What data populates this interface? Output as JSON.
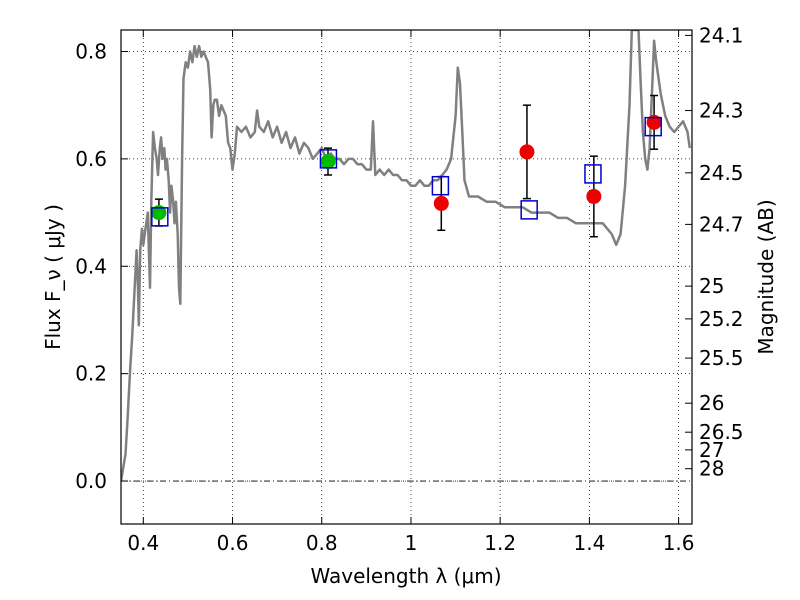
{
  "chart_data": {
    "type": "scatter",
    "xlabel": "Wavelength  λ (μm)",
    "ylabel": "Flux  F_ν  ( μJy )",
    "ylabel_right": "Magnitude (AB)",
    "xlim": [
      0.35,
      1.63
    ],
    "ylim": [
      -0.08,
      0.84
    ],
    "x_ticks": [
      0.4,
      0.6,
      0.8,
      1.0,
      1.2,
      1.4,
      1.6
    ],
    "x_tick_labels": [
      "0.4",
      "0.6",
      "0.8",
      "1",
      "1.2",
      "1.4",
      "1.6"
    ],
    "y_ticks": [
      0.0,
      0.2,
      0.4,
      0.6,
      0.8
    ],
    "y_tick_labels": [
      "0.0",
      "0.2",
      "0.4",
      "0.6",
      "0.8"
    ],
    "right_ticks": [
      {
        "label": "24.1",
        "flux": 0.83
      },
      {
        "label": "24.3",
        "flux": 0.69
      },
      {
        "label": "24.5",
        "flux": 0.574
      },
      {
        "label": "24.7",
        "flux": 0.478
      },
      {
        "label": "25",
        "flux": 0.363
      },
      {
        "label": "25.2",
        "flux": 0.302
      },
      {
        "label": "25.5",
        "flux": 0.229
      },
      {
        "label": "26",
        "flux": 0.145
      },
      {
        "label": "26.5",
        "flux": 0.091
      },
      {
        "label": "27",
        "flux": 0.058
      },
      {
        "label": "28",
        "flux": 0.023
      }
    ],
    "grid": true,
    "zero_line": true,
    "colors": {
      "sed_line": "#808080",
      "green_points": "#00bb00",
      "red_points": "#ee0000",
      "model_boxes": "#0000cc",
      "error_bars": "#000000"
    },
    "series": [
      {
        "type": "line",
        "points": [
          [
            0.35,
            0.0
          ],
          [
            0.36,
            0.05
          ],
          [
            0.365,
            0.12
          ],
          [
            0.37,
            0.2
          ],
          [
            0.375,
            0.27
          ],
          [
            0.38,
            0.35
          ],
          [
            0.385,
            0.43
          ],
          [
            0.388,
            0.36
          ],
          [
            0.39,
            0.29
          ],
          [
            0.393,
            0.43
          ],
          [
            0.397,
            0.47
          ],
          [
            0.4,
            0.44
          ],
          [
            0.405,
            0.47
          ],
          [
            0.41,
            0.5
          ],
          [
            0.412,
            0.44
          ],
          [
            0.415,
            0.36
          ],
          [
            0.418,
            0.52
          ],
          [
            0.422,
            0.65
          ],
          [
            0.426,
            0.62
          ],
          [
            0.43,
            0.6
          ],
          [
            0.433,
            0.57
          ],
          [
            0.437,
            0.62
          ],
          [
            0.44,
            0.64
          ],
          [
            0.443,
            0.6
          ],
          [
            0.447,
            0.62
          ],
          [
            0.45,
            0.58
          ],
          [
            0.453,
            0.6
          ],
          [
            0.457,
            0.56
          ],
          [
            0.46,
            0.5
          ],
          [
            0.463,
            0.55
          ],
          [
            0.467,
            0.52
          ],
          [
            0.47,
            0.48
          ],
          [
            0.473,
            0.52
          ],
          [
            0.477,
            0.46
          ],
          [
            0.48,
            0.36
          ],
          [
            0.483,
            0.33
          ],
          [
            0.487,
            0.6
          ],
          [
            0.49,
            0.75
          ],
          [
            0.495,
            0.78
          ],
          [
            0.5,
            0.77
          ],
          [
            0.505,
            0.8
          ],
          [
            0.51,
            0.78
          ],
          [
            0.515,
            0.81
          ],
          [
            0.52,
            0.79
          ],
          [
            0.525,
            0.81
          ],
          [
            0.53,
            0.79
          ],
          [
            0.535,
            0.8
          ],
          [
            0.545,
            0.78
          ],
          [
            0.55,
            0.73
          ],
          [
            0.553,
            0.64
          ],
          [
            0.557,
            0.7
          ],
          [
            0.56,
            0.71
          ],
          [
            0.565,
            0.71
          ],
          [
            0.57,
            0.68
          ],
          [
            0.575,
            0.7
          ],
          [
            0.585,
            0.68
          ],
          [
            0.59,
            0.63
          ],
          [
            0.595,
            0.62
          ],
          [
            0.6,
            0.58
          ],
          [
            0.605,
            0.61
          ],
          [
            0.61,
            0.66
          ],
          [
            0.62,
            0.65
          ],
          [
            0.63,
            0.66
          ],
          [
            0.64,
            0.64
          ],
          [
            0.65,
            0.65
          ],
          [
            0.655,
            0.69
          ],
          [
            0.66,
            0.66
          ],
          [
            0.67,
            0.65
          ],
          [
            0.68,
            0.67
          ],
          [
            0.69,
            0.64
          ],
          [
            0.7,
            0.66
          ],
          [
            0.71,
            0.63
          ],
          [
            0.72,
            0.65
          ],
          [
            0.73,
            0.62
          ],
          [
            0.74,
            0.64
          ],
          [
            0.75,
            0.61
          ],
          [
            0.76,
            0.63
          ],
          [
            0.77,
            0.62
          ],
          [
            0.78,
            0.6
          ],
          [
            0.79,
            0.61
          ],
          [
            0.8,
            0.62
          ],
          [
            0.81,
            0.6
          ],
          [
            0.82,
            0.61
          ],
          [
            0.83,
            0.6
          ],
          [
            0.84,
            0.6
          ],
          [
            0.85,
            0.59
          ],
          [
            0.86,
            0.6
          ],
          [
            0.87,
            0.6
          ],
          [
            0.88,
            0.59
          ],
          [
            0.89,
            0.59
          ],
          [
            0.9,
            0.58
          ],
          [
            0.91,
            0.58
          ],
          [
            0.915,
            0.67
          ],
          [
            0.92,
            0.57
          ],
          [
            0.93,
            0.58
          ],
          [
            0.94,
            0.57
          ],
          [
            0.95,
            0.58
          ],
          [
            0.96,
            0.57
          ],
          [
            0.97,
            0.57
          ],
          [
            0.98,
            0.56
          ],
          [
            0.99,
            0.56
          ],
          [
            1.0,
            0.55
          ],
          [
            1.01,
            0.55
          ],
          [
            1.02,
            0.56
          ],
          [
            1.03,
            0.55
          ],
          [
            1.04,
            0.55
          ],
          [
            1.05,
            0.56
          ],
          [
            1.06,
            0.56
          ],
          [
            1.07,
            0.57
          ],
          [
            1.08,
            0.58
          ],
          [
            1.09,
            0.6
          ],
          [
            1.1,
            0.68
          ],
          [
            1.105,
            0.77
          ],
          [
            1.11,
            0.74
          ],
          [
            1.115,
            0.65
          ],
          [
            1.12,
            0.56
          ],
          [
            1.13,
            0.53
          ],
          [
            1.15,
            0.53
          ],
          [
            1.17,
            0.52
          ],
          [
            1.19,
            0.52
          ],
          [
            1.21,
            0.51
          ],
          [
            1.23,
            0.51
          ],
          [
            1.25,
            0.51
          ],
          [
            1.27,
            0.5
          ],
          [
            1.29,
            0.5
          ],
          [
            1.31,
            0.5
          ],
          [
            1.33,
            0.49
          ],
          [
            1.35,
            0.49
          ],
          [
            1.37,
            0.48
          ],
          [
            1.39,
            0.48
          ],
          [
            1.41,
            0.48
          ],
          [
            1.43,
            0.48
          ],
          [
            1.44,
            0.47
          ],
          [
            1.45,
            0.46
          ],
          [
            1.46,
            0.44
          ],
          [
            1.47,
            0.46
          ],
          [
            1.48,
            0.55
          ],
          [
            1.49,
            0.7
          ],
          [
            1.495,
            0.84
          ],
          [
            1.5,
            0.84
          ],
          [
            1.505,
            0.84
          ],
          [
            1.51,
            0.84
          ],
          [
            1.515,
            0.74
          ],
          [
            1.52,
            0.65
          ],
          [
            1.525,
            0.6
          ],
          [
            1.53,
            0.58
          ],
          [
            1.535,
            0.62
          ],
          [
            1.54,
            0.72
          ],
          [
            1.545,
            0.82
          ],
          [
            1.55,
            0.78
          ],
          [
            1.56,
            0.72
          ],
          [
            1.57,
            0.68
          ],
          [
            1.58,
            0.66
          ],
          [
            1.59,
            0.65
          ],
          [
            1.6,
            0.66
          ],
          [
            1.61,
            0.67
          ],
          [
            1.62,
            0.65
          ],
          [
            1.625,
            0.62
          ]
        ]
      },
      {
        "type": "scatter",
        "points": [
          {
            "x": 0.435,
            "y": 0.5,
            "yerr": 0.025
          },
          {
            "x": 0.814,
            "y": 0.595,
            "yerr": 0.025
          }
        ]
      },
      {
        "type": "scatter",
        "points": [
          {
            "x": 1.068,
            "y": 0.517,
            "yerr": 0.05
          },
          {
            "x": 1.26,
            "y": 0.613,
            "yerr": 0.087
          },
          {
            "x": 1.41,
            "y": 0.53,
            "yerr": 0.075
          },
          {
            "x": 1.545,
            "y": 0.668,
            "yerr": 0.05
          }
        ]
      },
      {
        "type": "scatter",
        "points": [
          {
            "x": 0.437,
            "y": 0.492
          },
          {
            "x": 0.815,
            "y": 0.6
          },
          {
            "x": 1.066,
            "y": 0.55
          },
          {
            "x": 1.265,
            "y": 0.505
          },
          {
            "x": 1.408,
            "y": 0.572
          },
          {
            "x": 1.543,
            "y": 0.66
          }
        ]
      }
    ]
  }
}
